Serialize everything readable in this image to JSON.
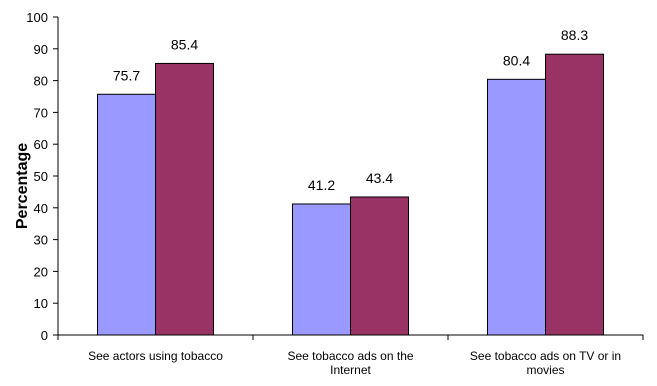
{
  "chart_data": {
    "type": "bar",
    "categories": [
      [
        "See actors using tobacco"
      ],
      [
        "See tobacco ads on the",
        "Internet"
      ],
      [
        "See tobacco ads on TV or in",
        "movies"
      ]
    ],
    "series": [
      {
        "values": [
          75.7,
          41.2,
          80.4
        ],
        "color": "#9999FF"
      },
      {
        "values": [
          85.4,
          43.4,
          88.3
        ],
        "color": "#993366"
      }
    ],
    "data_labels": [
      [
        "75.7",
        "41.2",
        "80.4"
      ],
      [
        "85.4",
        "43.4",
        "88.3"
      ]
    ],
    "ylabel": "Percentage",
    "ylim": [
      0,
      100
    ],
    "yticks": [
      "0",
      "10",
      "20",
      "30",
      "40",
      "50",
      "60",
      "70",
      "80",
      "90",
      "100"
    ],
    "grid": false,
    "legend": "none"
  }
}
